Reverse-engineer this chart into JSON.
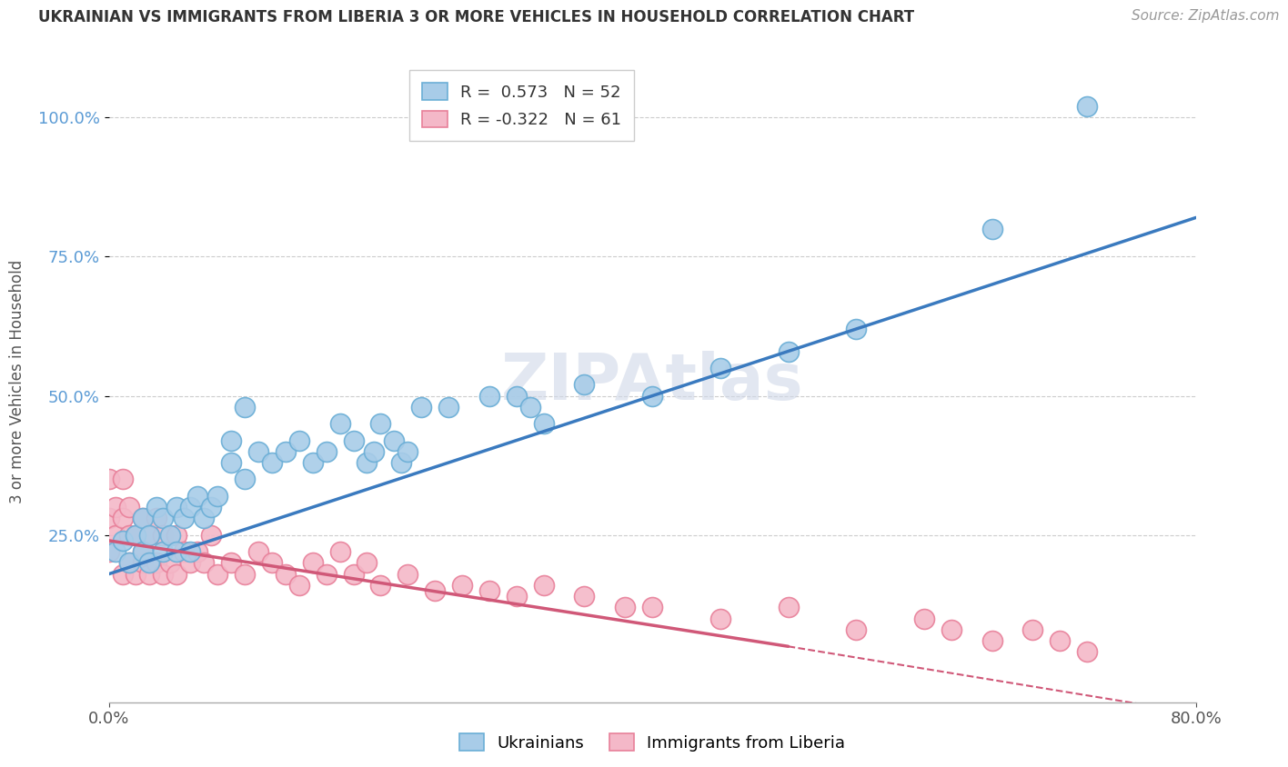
{
  "title": "UKRAINIAN VS IMMIGRANTS FROM LIBERIA 3 OR MORE VEHICLES IN HOUSEHOLD CORRELATION CHART",
  "source": "Source: ZipAtlas.com",
  "ylabel": "3 or more Vehicles in Household",
  "xlim": [
    0.0,
    0.8
  ],
  "ylim": [
    -0.05,
    1.1
  ],
  "xticks": [
    0.0,
    0.8
  ],
  "xticklabels": [
    "0.0%",
    "80.0%"
  ],
  "yticks": [
    0.25,
    0.5,
    0.75,
    1.0
  ],
  "yticklabels": [
    "25.0%",
    "50.0%",
    "75.0%",
    "100.0%"
  ],
  "grid_color": "#cccccc",
  "background_color": "#ffffff",
  "watermark": "ZIPAtlas",
  "legend_r1": "R =  0.573",
  "legend_n1": "N = 52",
  "legend_r2": "R = -0.322",
  "legend_n2": "N = 61",
  "blue_color": "#a8cce8",
  "blue_edge": "#6aaed6",
  "pink_color": "#f4b8c8",
  "pink_edge": "#e8809a",
  "line_blue": "#3a7abf",
  "line_pink": "#d05878",
  "ukr_line_x0": 0.0,
  "ukr_line_y0": 0.18,
  "ukr_line_x1": 0.8,
  "ukr_line_y1": 0.82,
  "lib_line_x0": 0.0,
  "lib_line_y0": 0.24,
  "lib_line_x1": 0.5,
  "lib_line_y1": 0.05,
  "lib_line_dash_x0": 0.5,
  "lib_line_dash_y0": 0.05,
  "lib_line_dash_x1": 0.8,
  "lib_line_dash_y1": -0.07,
  "ukrainians_x": [
    0.005,
    0.01,
    0.015,
    0.02,
    0.025,
    0.025,
    0.03,
    0.03,
    0.035,
    0.04,
    0.04,
    0.045,
    0.05,
    0.05,
    0.055,
    0.06,
    0.06,
    0.065,
    0.07,
    0.075,
    0.08,
    0.09,
    0.09,
    0.1,
    0.1,
    0.11,
    0.12,
    0.13,
    0.14,
    0.15,
    0.16,
    0.17,
    0.18,
    0.19,
    0.195,
    0.2,
    0.21,
    0.215,
    0.22,
    0.23,
    0.25,
    0.28,
    0.3,
    0.31,
    0.32,
    0.35,
    0.4,
    0.45,
    0.5,
    0.55,
    0.65,
    0.72
  ],
  "ukrainians_y": [
    0.22,
    0.24,
    0.2,
    0.25,
    0.28,
    0.22,
    0.2,
    0.25,
    0.3,
    0.22,
    0.28,
    0.25,
    0.3,
    0.22,
    0.28,
    0.3,
    0.22,
    0.32,
    0.28,
    0.3,
    0.32,
    0.38,
    0.42,
    0.35,
    0.48,
    0.4,
    0.38,
    0.4,
    0.42,
    0.38,
    0.4,
    0.45,
    0.42,
    0.38,
    0.4,
    0.45,
    0.42,
    0.38,
    0.4,
    0.48,
    0.48,
    0.5,
    0.5,
    0.48,
    0.45,
    0.52,
    0.5,
    0.55,
    0.58,
    0.62,
    0.8,
    1.02
  ],
  "liberia_x": [
    0.0,
    0.0,
    0.0,
    0.005,
    0.005,
    0.01,
    0.01,
    0.01,
    0.015,
    0.015,
    0.015,
    0.02,
    0.02,
    0.025,
    0.025,
    0.025,
    0.03,
    0.03,
    0.035,
    0.035,
    0.04,
    0.04,
    0.045,
    0.05,
    0.05,
    0.055,
    0.06,
    0.065,
    0.07,
    0.075,
    0.08,
    0.09,
    0.1,
    0.11,
    0.12,
    0.13,
    0.14,
    0.15,
    0.16,
    0.17,
    0.18,
    0.19,
    0.2,
    0.22,
    0.24,
    0.26,
    0.28,
    0.3,
    0.32,
    0.35,
    0.38,
    0.4,
    0.45,
    0.5,
    0.55,
    0.6,
    0.62,
    0.65,
    0.68,
    0.7,
    0.72
  ],
  "liberia_y": [
    0.22,
    0.28,
    0.35,
    0.25,
    0.3,
    0.18,
    0.28,
    0.35,
    0.2,
    0.25,
    0.3,
    0.18,
    0.25,
    0.2,
    0.28,
    0.22,
    0.18,
    0.25,
    0.2,
    0.28,
    0.18,
    0.25,
    0.2,
    0.18,
    0.25,
    0.22,
    0.2,
    0.22,
    0.2,
    0.25,
    0.18,
    0.2,
    0.18,
    0.22,
    0.2,
    0.18,
    0.16,
    0.2,
    0.18,
    0.22,
    0.18,
    0.2,
    0.16,
    0.18,
    0.15,
    0.16,
    0.15,
    0.14,
    0.16,
    0.14,
    0.12,
    0.12,
    0.1,
    0.12,
    0.08,
    0.1,
    0.08,
    0.06,
    0.08,
    0.06,
    0.04
  ]
}
